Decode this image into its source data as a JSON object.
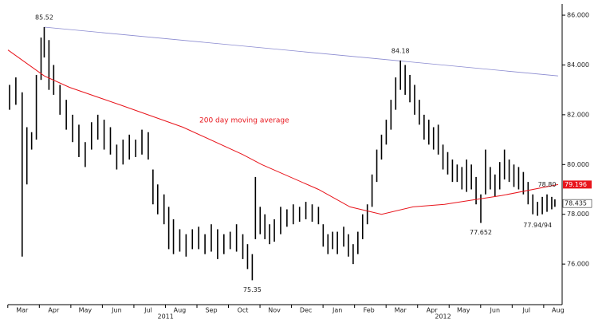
{
  "chart_data": {
    "type": "range-bar",
    "xticks": [
      {
        "value": 0,
        "label": "Mar"
      },
      {
        "value": 1,
        "label": "Apr"
      },
      {
        "value": 2,
        "label": "May"
      },
      {
        "value": 3,
        "label": "Jun"
      },
      {
        "value": 4,
        "label": "Jul"
      },
      {
        "value": 5,
        "label": "Aug"
      },
      {
        "value": 6,
        "label": "Sep"
      },
      {
        "value": 7,
        "label": "Oct"
      },
      {
        "value": 8,
        "label": "Nov"
      },
      {
        "value": 9,
        "label": "Dec"
      },
      {
        "value": 10,
        "label": "Jan"
      },
      {
        "value": 11,
        "label": "Feb"
      },
      {
        "value": 12,
        "label": "Mar"
      },
      {
        "value": 13,
        "label": "Apr"
      },
      {
        "value": 14,
        "label": "May"
      },
      {
        "value": 15,
        "label": "Jun"
      },
      {
        "value": 16,
        "label": "Jul"
      },
      {
        "value": 17,
        "label": "Aug"
      }
    ],
    "years": [
      "2011",
      "2012"
    ],
    "xlim": [
      -0.45,
      17.13
    ],
    "ylim": [
      74.37,
      86.45
    ],
    "yticks": [
      {
        "value": 76,
        "label": "76.000"
      },
      {
        "value": 78,
        "label": "78.000"
      },
      {
        "value": 80,
        "label": "80.000"
      },
      {
        "value": 82,
        "label": "82.000"
      },
      {
        "value": 84,
        "label": "84.000"
      },
      {
        "value": 86,
        "label": "86.000"
      }
    ],
    "price": {
      "color": "#000000",
      "x": [
        -0.4,
        -0.2,
        0.0,
        0.15,
        0.3,
        0.45,
        0.6,
        0.7,
        0.85,
        1.0,
        1.2,
        1.4,
        1.6,
        1.8,
        2.0,
        2.2,
        2.4,
        2.6,
        2.8,
        3.0,
        3.2,
        3.4,
        3.6,
        3.8,
        4.0,
        4.15,
        4.3,
        4.5,
        4.65,
        4.8,
        5.0,
        5.2,
        5.4,
        5.6,
        5.8,
        6.0,
        6.2,
        6.4,
        6.6,
        6.8,
        7.0,
        7.15,
        7.3,
        7.4,
        7.55,
        7.7,
        7.85,
        8.0,
        8.2,
        8.4,
        8.6,
        8.8,
        9.0,
        9.2,
        9.4,
        9.55,
        9.7,
        9.85,
        10.0,
        10.2,
        10.35,
        10.5,
        10.65,
        10.8,
        10.95,
        11.1,
        11.25,
        11.4,
        11.55,
        11.7,
        11.85,
        12.0,
        12.15,
        12.3,
        12.45,
        12.6,
        12.75,
        12.9,
        13.05,
        13.2,
        13.35,
        13.5,
        13.65,
        13.8,
        13.95,
        14.1,
        14.25,
        14.4,
        14.55,
        14.7,
        14.85,
        15.0,
        15.15,
        15.3,
        15.45,
        15.6,
        15.75,
        15.9,
        16.05,
        16.2,
        16.35,
        16.5,
        16.65,
        16.8,
        16.9
      ],
      "high": [
        83.2,
        83.5,
        82.9,
        81.5,
        81.3,
        83.6,
        85.1,
        85.52,
        85.0,
        84.0,
        83.2,
        82.6,
        82.0,
        81.6,
        80.9,
        81.7,
        82.0,
        81.8,
        81.5,
        80.8,
        81.0,
        81.2,
        81.0,
        81.4,
        81.3,
        79.8,
        79.2,
        78.8,
        78.3,
        77.8,
        77.4,
        77.2,
        77.4,
        77.5,
        77.2,
        77.6,
        77.4,
        77.2,
        77.3,
        77.6,
        77.2,
        76.8,
        76.4,
        79.5,
        78.3,
        78.0,
        77.6,
        77.8,
        78.3,
        78.2,
        78.4,
        78.3,
        78.5,
        78.4,
        78.3,
        77.6,
        77.2,
        77.3,
        77.3,
        77.5,
        77.2,
        76.8,
        77.3,
        78.0,
        78.4,
        79.6,
        80.6,
        81.2,
        81.8,
        82.6,
        83.5,
        84.18,
        84.0,
        83.6,
        83.2,
        82.6,
        82.0,
        81.8,
        81.5,
        81.6,
        80.8,
        80.5,
        80.2,
        80.0,
        79.9,
        80.2,
        80.0,
        79.5,
        78.8,
        80.6,
        79.9,
        79.6,
        80.1,
        80.6,
        80.2,
        80.0,
        79.9,
        79.7,
        79.3,
        78.8,
        78.5,
        78.7,
        78.8,
        78.7,
        78.6
      ],
      "low": [
        82.2,
        82.4,
        76.3,
        79.2,
        80.6,
        81.0,
        83.4,
        84.3,
        83.0,
        82.8,
        82.0,
        81.4,
        80.9,
        80.3,
        79.9,
        80.6,
        81.0,
        80.6,
        80.4,
        79.8,
        80.0,
        80.2,
        80.3,
        80.4,
        80.2,
        78.4,
        78.0,
        77.6,
        76.6,
        76.4,
        76.5,
        76.3,
        76.6,
        76.6,
        76.4,
        76.5,
        76.2,
        76.4,
        76.6,
        76.5,
        76.2,
        75.8,
        75.35,
        77.0,
        77.2,
        77.0,
        76.8,
        76.9,
        77.2,
        77.5,
        77.6,
        77.7,
        77.8,
        77.7,
        77.6,
        76.7,
        76.4,
        76.6,
        76.4,
        76.7,
        76.3,
        76.0,
        76.4,
        77.0,
        77.6,
        78.3,
        79.3,
        80.2,
        80.8,
        81.4,
        82.2,
        83.0,
        82.8,
        82.5,
        82.0,
        81.6,
        81.0,
        80.8,
        80.6,
        80.4,
        79.8,
        79.6,
        79.3,
        79.3,
        79.0,
        78.9,
        79.0,
        78.4,
        77.652,
        78.8,
        79.0,
        78.7,
        79.0,
        79.4,
        79.3,
        79.1,
        79.0,
        78.8,
        78.4,
        78.0,
        77.94,
        78.0,
        78.1,
        78.2,
        78.3
      ],
      "last_close": 78.435
    },
    "moving_average": {
      "label": "200 day moving average",
      "color": "#e8141b",
      "x": [
        -0.45,
        0.7,
        1.5,
        3.1,
        5.1,
        7.0,
        7.6,
        9.4,
        10.4,
        11.4,
        12.4,
        13.4,
        15.2,
        17.0
      ],
      "values": [
        84.6,
        83.56,
        83.1,
        82.4,
        81.5,
        80.4,
        80.0,
        79.0,
        78.3,
        78.0,
        78.3,
        78.4,
        78.75,
        79.196
      ]
    },
    "trend_line": {
      "color": "#8a8ad0",
      "x": [
        0.7,
        17.0
      ],
      "values": [
        85.52,
        83.56
      ]
    },
    "annotations": [
      {
        "text": "85.52",
        "x": 0.7,
        "y": 85.52,
        "pos": "above"
      },
      {
        "text": "84.18",
        "x": 12.0,
        "y": 84.18,
        "pos": "above"
      },
      {
        "text": "75.35",
        "x": 7.3,
        "y": 75.35,
        "pos": "below"
      },
      {
        "text": "77.652",
        "x": 14.55,
        "y": 77.652,
        "pos": "below"
      },
      {
        "text": "77.94/94",
        "x": 16.35,
        "y": 77.94,
        "pos": "below"
      },
      {
        "text": "78.80",
        "x": 16.65,
        "y": 78.8,
        "pos": "above"
      }
    ]
  }
}
